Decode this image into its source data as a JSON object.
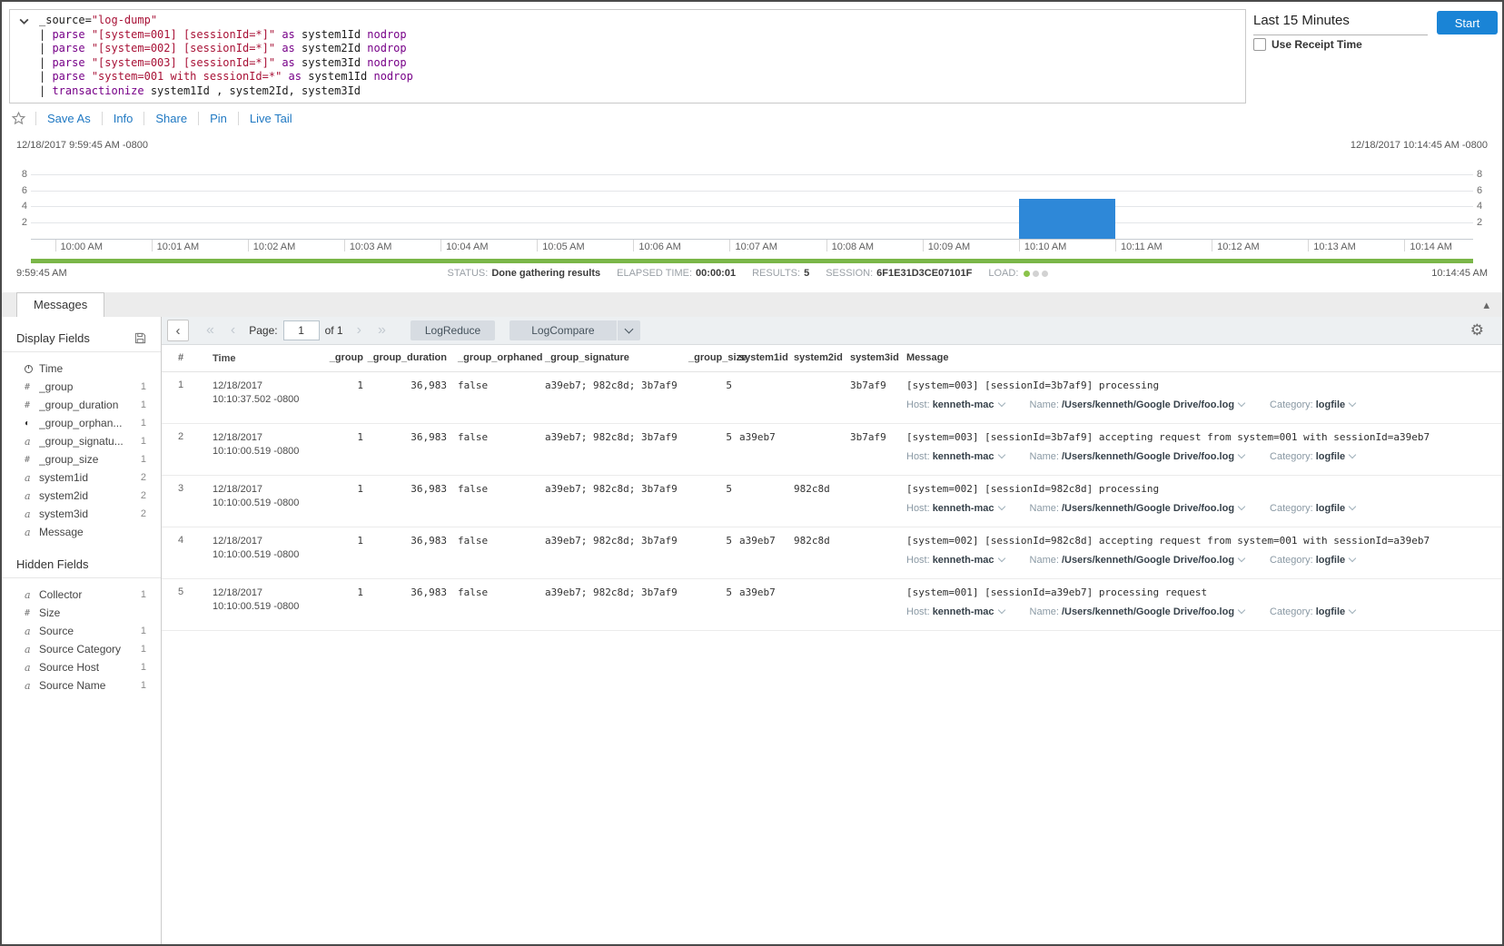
{
  "colors": {
    "accent_blue": "#1a84d6",
    "link_blue": "#2079c3",
    "bar_blue": "#2e88d8",
    "green": "#7ab648",
    "keyword_purple": "#770088",
    "string_red": "#a81136"
  },
  "query_panel": {
    "lines": [
      [
        {
          "t": "_source=",
          "c": "p"
        },
        {
          "t": "\"log-dump\"",
          "c": "s"
        }
      ],
      [
        {
          "t": "| ",
          "c": "p"
        },
        {
          "t": "parse ",
          "c": "k"
        },
        {
          "t": "\"[system=001] [sessionId=*]\"",
          "c": "s"
        },
        {
          "t": " as ",
          "c": "k"
        },
        {
          "t": "system1Id ",
          "c": "p"
        },
        {
          "t": "nodrop",
          "c": "k"
        }
      ],
      [
        {
          "t": "| ",
          "c": "p"
        },
        {
          "t": "parse ",
          "c": "k"
        },
        {
          "t": "\"[system=002] [sessionId=*]\"",
          "c": "s"
        },
        {
          "t": " as ",
          "c": "k"
        },
        {
          "t": "system2Id ",
          "c": "p"
        },
        {
          "t": "nodrop",
          "c": "k"
        }
      ],
      [
        {
          "t": "| ",
          "c": "p"
        },
        {
          "t": "parse ",
          "c": "k"
        },
        {
          "t": "\"[system=003] [sessionId=*]\"",
          "c": "s"
        },
        {
          "t": " as ",
          "c": "k"
        },
        {
          "t": "system3Id ",
          "c": "p"
        },
        {
          "t": "nodrop",
          "c": "k"
        }
      ],
      [
        {
          "t": "| ",
          "c": "p"
        },
        {
          "t": "parse ",
          "c": "k"
        },
        {
          "t": "\"system=001 with sessionId=*\"",
          "c": "s"
        },
        {
          "t": " as ",
          "c": "k"
        },
        {
          "t": "system1Id ",
          "c": "p"
        },
        {
          "t": "nodrop",
          "c": "k"
        }
      ],
      [
        {
          "t": "| ",
          "c": "p"
        },
        {
          "t": "transactionize ",
          "c": "k"
        },
        {
          "t": "system1Id , system2Id, system3Id",
          "c": "p"
        }
      ]
    ]
  },
  "time_controls": {
    "range_label": "Last 15 Minutes",
    "start_button": "Start",
    "receipt_label": "Use Receipt Time",
    "receipt_checked": false
  },
  "toolbar": {
    "items": [
      "Save As",
      "Info",
      "Share",
      "Pin",
      "Live Tail"
    ]
  },
  "timeline": {
    "start_timestamp": "12/18/2017 9:59:45 AM -0800",
    "end_timestamp": "12/18/2017 10:14:45 AM -0800",
    "range_start_time": "9:59:45 AM",
    "range_end_time": "10:14:45 AM",
    "chart_data": {
      "type": "bar",
      "x": [
        "10:00 AM",
        "10:01 AM",
        "10:02 AM",
        "10:03 AM",
        "10:04 AM",
        "10:05 AM",
        "10:06 AM",
        "10:07 AM",
        "10:08 AM",
        "10:09 AM",
        "10:10 AM",
        "10:11 AM",
        "10:12 AM",
        "10:13 AM",
        "10:14 AM"
      ],
      "values": [
        0,
        0,
        0,
        0,
        0,
        0,
        0,
        0,
        0,
        0,
        5,
        0,
        0,
        0,
        0
      ],
      "yticks": [
        2,
        4,
        6,
        8
      ],
      "ylim": [
        0,
        8
      ],
      "grid": true,
      "bar_color": "#2e88d8"
    }
  },
  "status_bar": {
    "status_label": "STATUS:",
    "status_value": "Done gathering results",
    "elapsed_label": "ELAPSED TIME:",
    "elapsed_value": "00:00:01",
    "results_label": "RESULTS:",
    "results_value": "5",
    "session_label": "SESSION:",
    "session_value": "6F1E31D3CE07101F",
    "load_label": "LOAD:",
    "load_dots": {
      "active": 1,
      "total": 3
    }
  },
  "tabs": {
    "messages": "Messages"
  },
  "sidebar": {
    "display_fields_title": "Display Fields",
    "hidden_fields_title": "Hidden Fields",
    "display_fields": [
      {
        "icon": "clock",
        "label": "Time",
        "count": ""
      },
      {
        "icon": "number",
        "label": "_group",
        "count": "1"
      },
      {
        "icon": "number",
        "label": "_group_duration",
        "count": "1"
      },
      {
        "icon": "boolean",
        "label": "_group_orphan...",
        "count": "1"
      },
      {
        "icon": "string",
        "label": "_group_signatu...",
        "count": "1"
      },
      {
        "icon": "number",
        "label": "_group_size",
        "count": "1"
      },
      {
        "icon": "string",
        "label": "system1id",
        "count": "2"
      },
      {
        "icon": "string",
        "label": "system2id",
        "count": "2"
      },
      {
        "icon": "string",
        "label": "system3id",
        "count": "2"
      },
      {
        "icon": "string",
        "label": "Message",
        "count": ""
      }
    ],
    "hidden_fields": [
      {
        "icon": "string",
        "label": "Collector",
        "count": "1"
      },
      {
        "icon": "number",
        "label": "Size",
        "count": ""
      },
      {
        "icon": "string",
        "label": "Source",
        "count": "1"
      },
      {
        "icon": "string",
        "label": "Source Category",
        "count": "1"
      },
      {
        "icon": "string",
        "label": "Source Host",
        "count": "1"
      },
      {
        "icon": "string",
        "label": "Source Name",
        "count": "1"
      }
    ]
  },
  "results": {
    "pagination": {
      "page_label": "Page:",
      "page_value": "1",
      "of_label": "of 1"
    },
    "logreduce_button": "LogReduce",
    "logcompare_button": "LogCompare",
    "table": {
      "headers": [
        "#",
        "Time",
        "_group",
        "_group_duration",
        "_group_orphaned",
        "_group_signature",
        "_group_size",
        "system1id",
        "system2id",
        "system3id",
        "Message"
      ],
      "rows": [
        {
          "num": "1",
          "date": "12/18/2017",
          "time": "10:10:37.502 -0800",
          "group": "1",
          "duration": "36,983",
          "orphaned": "false",
          "signature": "a39eb7; 982c8d; 3b7af9",
          "size": "5",
          "system1id": "",
          "system2id": "",
          "system3id": "3b7af9",
          "message": "[system=003] [sessionId=3b7af9] processing",
          "meta": {
            "host_label": "Host:",
            "host": "kenneth-mac",
            "name_label": "Name:",
            "name": "/Users/kenneth/Google Drive/foo.log",
            "category_label": "Category:",
            "category": "logfile"
          }
        },
        {
          "num": "2",
          "date": "12/18/2017",
          "time": "10:10:00.519 -0800",
          "group": "1",
          "duration": "36,983",
          "orphaned": "false",
          "signature": "a39eb7; 982c8d; 3b7af9",
          "size": "5",
          "system1id": "a39eb7",
          "system2id": "",
          "system3id": "3b7af9",
          "message": "[system=003] [sessionId=3b7af9] accepting request from system=001 with sessionId=a39eb7",
          "meta": {
            "host_label": "Host:",
            "host": "kenneth-mac",
            "name_label": "Name:",
            "name": "/Users/kenneth/Google Drive/foo.log",
            "category_label": "Category:",
            "category": "logfile"
          }
        },
        {
          "num": "3",
          "date": "12/18/2017",
          "time": "10:10:00.519 -0800",
          "group": "1",
          "duration": "36,983",
          "orphaned": "false",
          "signature": "a39eb7; 982c8d; 3b7af9",
          "size": "5",
          "system1id": "",
          "system2id": "982c8d",
          "system3id": "",
          "message": "[system=002] [sessionId=982c8d] processing",
          "meta": {
            "host_label": "Host:",
            "host": "kenneth-mac",
            "name_label": "Name:",
            "name": "/Users/kenneth/Google Drive/foo.log",
            "category_label": "Category:",
            "category": "logfile"
          }
        },
        {
          "num": "4",
          "date": "12/18/2017",
          "time": "10:10:00.519 -0800",
          "group": "1",
          "duration": "36,983",
          "orphaned": "false",
          "signature": "a39eb7; 982c8d; 3b7af9",
          "size": "5",
          "system1id": "a39eb7",
          "system2id": "982c8d",
          "system3id": "",
          "message": "[system=002] [sessionId=982c8d] accepting request from system=001 with sessionId=a39eb7",
          "meta": {
            "host_label": "Host:",
            "host": "kenneth-mac",
            "name_label": "Name:",
            "name": "/Users/kenneth/Google Drive/foo.log",
            "category_label": "Category:",
            "category": "logfile"
          }
        },
        {
          "num": "5",
          "date": "12/18/2017",
          "time": "10:10:00.519 -0800",
          "group": "1",
          "duration": "36,983",
          "orphaned": "false",
          "signature": "a39eb7; 982c8d; 3b7af9",
          "size": "5",
          "system1id": "a39eb7",
          "system2id": "",
          "system3id": "",
          "message": "[system=001] [sessionId=a39eb7] processing request",
          "meta": {
            "host_label": "Host:",
            "host": "kenneth-mac",
            "name_label": "Name:",
            "name": "/Users/kenneth/Google Drive/foo.log",
            "category_label": "Category:",
            "category": "logfile"
          }
        }
      ]
    }
  }
}
